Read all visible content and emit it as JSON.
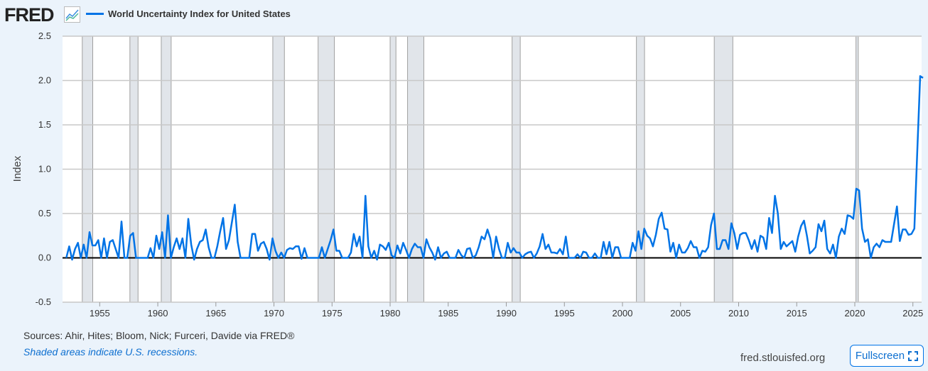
{
  "header": {
    "logo": "FRED",
    "logo_icon": "line-chart-icon"
  },
  "chart_data": {
    "type": "line",
    "title": "",
    "xlabel": "",
    "ylabel": "Index",
    "ylim": [
      -0.5,
      2.5
    ],
    "xlim": [
      1951.8,
      2025.75
    ],
    "grid": true,
    "legend_placement": "top-left",
    "yticks": [
      "2.5",
      "2.0",
      "1.5",
      "1.0",
      "0.5",
      "0.0",
      "-0.5"
    ],
    "xticks": [
      "1955",
      "1960",
      "1965",
      "1970",
      "1975",
      "1980",
      "1985",
      "1990",
      "1995",
      "2000",
      "2005",
      "2010",
      "2015",
      "2020",
      "2025"
    ],
    "series": [
      {
        "name": "World Uncertainty Index for United States",
        "color": "#0073e6",
        "frequency": "quarterly",
        "start": "1952Q1",
        "values": [
          0.0,
          0.13,
          -0.02,
          0.1,
          0.17,
          0.0,
          0.15,
          0.0,
          0.29,
          0.14,
          0.14,
          0.2,
          0.0,
          0.22,
          0.0,
          0.18,
          0.2,
          0.1,
          0.0,
          0.41,
          0.0,
          0.0,
          0.25,
          0.28,
          0.0,
          0.0,
          0.0,
          0.0,
          0.0,
          0.11,
          0.0,
          0.25,
          0.1,
          0.29,
          0.0,
          0.48,
          0.0,
          0.12,
          0.22,
          0.1,
          0.22,
          0.0,
          0.44,
          0.15,
          -0.02,
          0.1,
          0.18,
          0.2,
          0.32,
          0.12,
          0.0,
          0.0,
          0.13,
          0.3,
          0.45,
          0.1,
          0.2,
          0.4,
          0.6,
          0.18,
          0.0,
          0.0,
          0.0,
          0.0,
          0.27,
          0.27,
          0.08,
          0.16,
          0.18,
          0.1,
          -0.02,
          0.22,
          0.08,
          0.0,
          0.06,
          0.0,
          0.09,
          0.11,
          0.1,
          0.13,
          0.13,
          -0.01,
          0.11,
          0.0,
          0.0,
          0.0,
          0.0,
          0.0,
          0.12,
          0.0,
          0.1,
          0.2,
          0.32,
          0.08,
          0.08,
          0.0,
          0.0,
          0.0,
          0.06,
          0.27,
          0.13,
          0.24,
          0.0,
          0.7,
          0.13,
          0.0,
          0.08,
          -0.02,
          0.15,
          0.13,
          0.09,
          0.17,
          0.03,
          0.0,
          0.14,
          0.05,
          0.17,
          0.09,
          0.0,
          0.1,
          0.16,
          0.12,
          0.12,
          0.0,
          0.21,
          0.12,
          0.06,
          -0.02,
          0.12,
          0.0,
          0.05,
          0.07,
          0.0,
          0.0,
          0.0,
          0.09,
          0.03,
          0.0,
          0.1,
          0.11,
          0.0,
          0.03,
          0.12,
          0.24,
          0.21,
          0.32,
          0.22,
          0.0,
          0.24,
          0.1,
          0.0,
          0.0,
          0.17,
          0.06,
          0.11,
          0.06,
          0.06,
          0.0,
          0.04,
          0.06,
          0.07,
          0.0,
          0.05,
          0.13,
          0.27,
          0.1,
          0.15,
          0.06,
          0.06,
          0.05,
          0.1,
          0.04,
          0.24,
          0.0,
          0.0,
          0.0,
          0.04,
          0.0,
          0.07,
          0.06,
          0.0,
          0.0,
          0.05,
          0.0,
          0.0,
          0.18,
          0.04,
          0.18,
          0.0,
          0.12,
          0.12,
          0.0,
          0.0,
          0.0,
          0.0,
          0.17,
          0.08,
          0.3,
          0.1,
          0.33,
          0.25,
          0.22,
          0.13,
          0.26,
          0.44,
          0.51,
          0.33,
          0.32,
          0.07,
          0.17,
          0.0,
          0.15,
          0.06,
          0.06,
          0.11,
          0.19,
          0.12,
          0.12,
          0.0,
          0.08,
          0.07,
          0.12,
          0.37,
          0.5,
          0.1,
          0.1,
          0.2,
          0.2,
          0.1,
          0.39,
          0.28,
          0.1,
          0.26,
          0.28,
          0.28,
          0.2,
          0.1,
          0.2,
          0.07,
          0.25,
          0.23,
          0.1,
          0.45,
          0.28,
          0.7,
          0.5,
          0.1,
          0.18,
          0.13,
          0.16,
          0.19,
          0.07,
          0.24,
          0.36,
          0.42,
          0.25,
          0.05,
          0.08,
          0.12,
          0.38,
          0.3,
          0.42,
          0.1,
          0.05,
          0.15,
          0.0,
          0.24,
          0.33,
          0.27,
          0.48,
          0.47,
          0.44,
          0.78,
          0.76,
          0.33,
          0.18,
          0.21,
          0.0,
          0.12,
          0.16,
          0.12,
          0.2,
          0.18,
          0.18,
          0.18,
          0.38,
          0.58,
          0.19,
          0.32,
          0.32,
          0.26,
          0.27,
          0.33,
          1.2,
          2.05,
          2.03
        ]
      }
    ],
    "recessions": [
      [
        "1953.5",
        "1954.4"
      ],
      [
        "1957.6",
        "1958.3"
      ],
      [
        "1960.3",
        "1961.15"
      ],
      [
        "1969.9",
        "1970.9"
      ],
      [
        "1973.8",
        "1975.2"
      ],
      [
        "1980.0",
        "1980.5"
      ],
      [
        "1981.5",
        "1982.9"
      ],
      [
        "1990.5",
        "1991.2"
      ],
      [
        "2001.2",
        "2001.9"
      ],
      [
        "2007.9",
        "2009.5"
      ],
      [
        "2020.1",
        "2020.3"
      ]
    ],
    "recession_color": "#e1e5ea"
  },
  "footer": {
    "sources": "Sources: Ahir, Hites; Bloom, Nick; Furceri, Davide via FRED®",
    "shaded_note": "Shaded areas indicate U.S. recessions.",
    "site": "fred.stlouisfed.org",
    "fullscreen_label": "Fullscreen",
    "fullscreen_icon": "expand-icon"
  }
}
